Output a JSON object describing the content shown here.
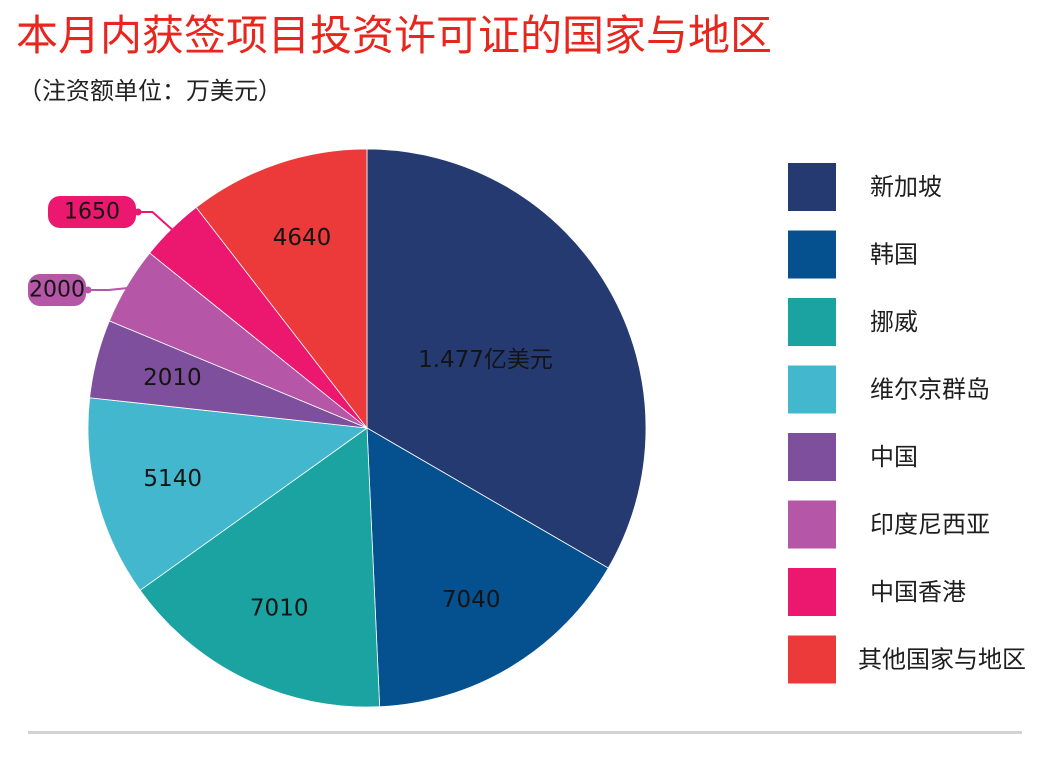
{
  "title": "本月内获签项目投资许可证的国家与地区",
  "subtitle": "（注资额单位：万美元）",
  "chart_data": {
    "type": "pie",
    "title": "本月内获签项目投资许可证的国家与地区",
    "subtitle": "（注资额单位：万美元）",
    "unit": "万美元",
    "start_angle_deg": 0,
    "direction": "clockwise",
    "slices": [
      {
        "name": "新加坡",
        "value": 14770,
        "label": "1.477亿美元",
        "color": "#263a72"
      },
      {
        "name": "韩国",
        "value": 7040,
        "label": "7040",
        "color": "#05508f"
      },
      {
        "name": "挪威",
        "value": 7010,
        "label": "7010",
        "color": "#1aa3a1"
      },
      {
        "name": "维尔京群岛",
        "value": 5140,
        "label": "5140",
        "color": "#43b7ce"
      },
      {
        "name": "中国",
        "value": 2010,
        "label": "2010",
        "color": "#7e4f9c"
      },
      {
        "name": "印度尼西亚",
        "value": 2000,
        "label": "2000",
        "color": "#b656a6",
        "callout": true
      },
      {
        "name": "中国香港",
        "value": 1650,
        "label": "1650",
        "color": "#ec1870",
        "callout": true
      },
      {
        "name": "其他国家与地区",
        "value": 4640,
        "label": "4640",
        "color": "#ec3a3a"
      }
    ],
    "legend": {
      "position": "right",
      "items": [
        "新加坡",
        "韩国",
        "挪威",
        "维尔京群岛",
        "中国",
        "印度尼西亚",
        "中国香港",
        "其他国家与地区"
      ]
    }
  }
}
